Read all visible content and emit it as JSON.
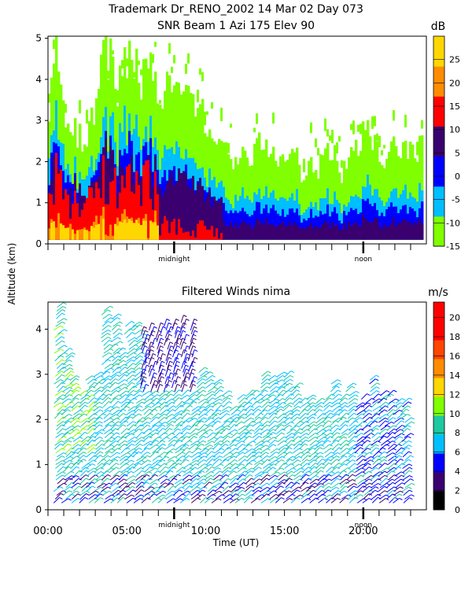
{
  "chart_data": [
    {
      "type": "heatmap",
      "title": "Trademark Dr_RENO_2002  14 Mar 02 Day 073",
      "subtitle": "SNR Beam 1 Azi 175 Elev 90",
      "ylabel": "Altitude (km)",
      "ylim": [
        0,
        5
      ],
      "y_ticks": [
        "0",
        "1",
        "2",
        "3",
        "4",
        "5"
      ],
      "xlim": [
        0,
        24
      ],
      "x_markers": [
        {
          "x": 8,
          "label": "midnight"
        },
        {
          "x": 20,
          "label": "noon"
        }
      ],
      "colorbar": {
        "unit": "dB",
        "ticks": [
          "-15",
          "-10",
          "-5",
          "0",
          "5",
          "10",
          "15",
          "20",
          "25"
        ],
        "range": [
          -15,
          30
        ],
        "colors": [
          "#7fff00",
          "#00bfff",
          "#0000ff",
          "#3a006f",
          "#ff0000",
          "#ff8c00",
          "#ffd700"
        ]
      },
      "column_tops_km": [
        [
          0.0,
          3.5
        ],
        [
          0.5,
          4.6
        ],
        [
          1.0,
          3.0
        ],
        [
          1.5,
          2.8
        ],
        [
          2.0,
          2.6
        ],
        [
          2.5,
          2.7
        ],
        [
          3.0,
          3.4
        ],
        [
          3.5,
          4.9
        ],
        [
          4.0,
          4.2
        ],
        [
          4.5,
          3.8
        ],
        [
          5.0,
          4.5
        ],
        [
          5.5,
          4.2
        ],
        [
          6.0,
          4.0
        ],
        [
          6.5,
          4.0
        ],
        [
          7.0,
          3.9
        ],
        [
          7.5,
          3.8
        ],
        [
          8.0,
          3.6
        ],
        [
          8.5,
          3.7
        ],
        [
          9.0,
          3.8
        ],
        [
          9.5,
          3.3
        ],
        [
          10.0,
          2.8
        ],
        [
          10.5,
          2.3
        ],
        [
          11.0,
          2.6
        ],
        [
          11.5,
          1.9
        ],
        [
          12.0,
          2.2
        ],
        [
          12.5,
          2.0
        ],
        [
          13.0,
          2.2
        ],
        [
          13.5,
          2.6
        ],
        [
          14.0,
          2.2
        ],
        [
          14.5,
          1.9
        ],
        [
          15.0,
          2.1
        ],
        [
          15.5,
          2.4
        ],
        [
          16.0,
          1.6
        ],
        [
          16.5,
          2.1
        ],
        [
          17.0,
          1.8
        ],
        [
          17.5,
          2.3
        ],
        [
          18.0,
          2.4
        ],
        [
          18.5,
          1.7
        ],
        [
          19.0,
          2.0
        ],
        [
          19.5,
          2.3
        ],
        [
          20.0,
          2.8
        ],
        [
          20.5,
          2.6
        ],
        [
          21.0,
          2.2
        ],
        [
          21.5,
          2.1
        ],
        [
          22.0,
          2.5
        ],
        [
          22.5,
          2.4
        ],
        [
          23.0,
          2.3
        ]
      ]
    },
    {
      "type": "scatter",
      "title": "Filtered Winds nima",
      "xlabel": "Time (UT)",
      "ylabel": "Altitude (km)",
      "ylim": [
        0,
        4.6
      ],
      "y_ticks": [
        "0",
        "1",
        "2",
        "3",
        "4"
      ],
      "xlim": [
        0,
        24
      ],
      "x_ticks": [
        "00:00",
        "05:00",
        "10:00",
        "15:00",
        "20:00"
      ],
      "x_markers": [
        {
          "x": 8,
          "label": "midnight"
        },
        {
          "x": 20,
          "label": "noon"
        }
      ],
      "colorbar": {
        "unit": "m/s",
        "ticks": [
          "0",
          "2",
          "4",
          "6",
          "8",
          "10",
          "12",
          "14",
          "16",
          "18",
          "20"
        ],
        "range": [
          0,
          22
        ],
        "colors": [
          "#000000",
          "#3a006f",
          "#0000ff",
          "#00bfff",
          "#1ec8a0",
          "#7fff00",
          "#ffd700",
          "#ff8c00",
          "#ff4500",
          "#ff0000",
          "#ff0000"
        ]
      },
      "series": [
        {
          "x": [
            0.5,
            1.0,
            1.5,
            2.0,
            2.5,
            3.0,
            3.5,
            4.0,
            4.5,
            5.0,
            5.5,
            6.0,
            6.5,
            7.0,
            7.5,
            8.0,
            8.5,
            9.0,
            9.5,
            10.0,
            10.5,
            11.0,
            11.5,
            12.0,
            12.5,
            13.0,
            13.5,
            14.0,
            14.5,
            15.0,
            15.5,
            16.0,
            16.5,
            17.0,
            17.5,
            18.0,
            18.5,
            19.0,
            19.5,
            20.0,
            20.5,
            21.0,
            21.5,
            22.0,
            22.5
          ],
          "y_top_km": [
            4.5,
            3.5,
            2.9,
            2.6,
            2.9,
            3.0,
            4.4,
            4.3,
            3.5,
            4.1,
            4.1,
            3.9,
            4.0,
            4.0,
            4.1,
            4.1,
            4.2,
            4.1,
            3.1,
            3.0,
            2.8,
            2.6,
            2.2,
            2.5,
            2.6,
            2.6,
            3.0,
            2.9,
            3.0,
            3.0,
            2.7,
            2.4,
            2.5,
            2.4,
            2.5,
            2.8,
            2.5,
            2.7,
            2.3,
            2.5,
            2.9,
            2.6,
            2.6,
            2.4,
            2.4
          ]
        }
      ]
    }
  ]
}
